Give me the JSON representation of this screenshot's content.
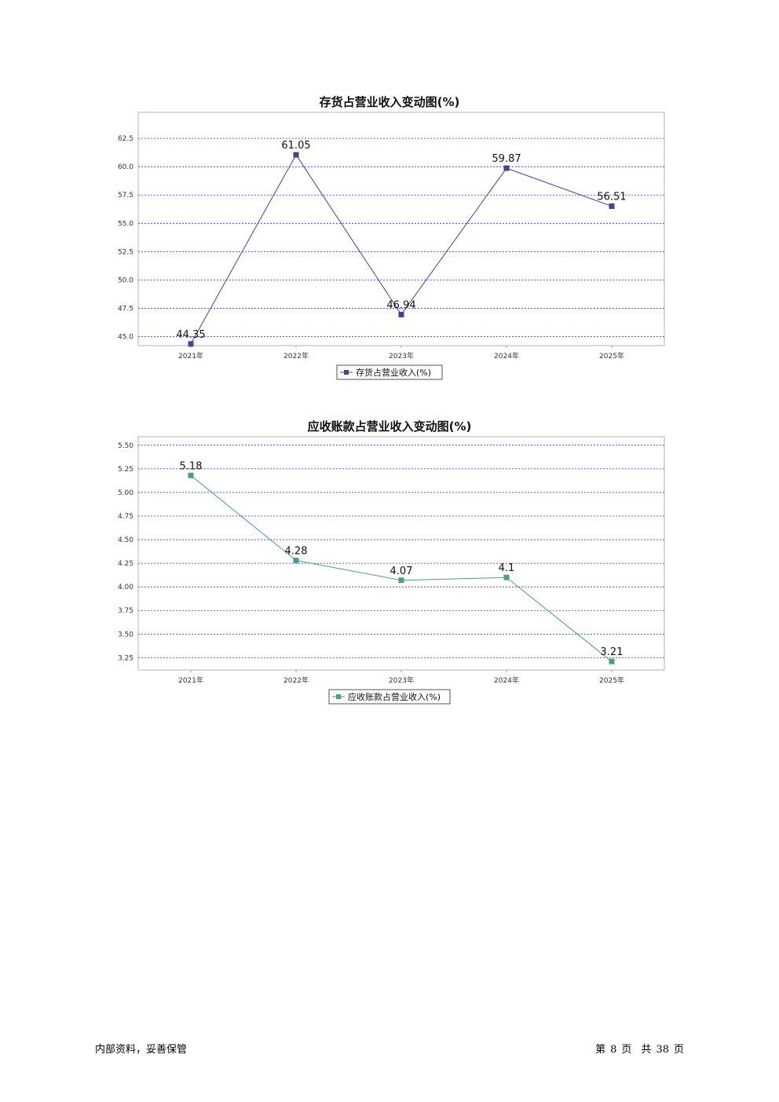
{
  "chart_data": [
    {
      "type": "line",
      "title": "存货占营业收入变动图(%)",
      "categories": [
        "2021年",
        "2022年",
        "2023年",
        "2024年",
        "2025年"
      ],
      "series": [
        {
          "name": "存货占营业收入(%)",
          "values": [
            44.35,
            61.05,
            46.94,
            59.87,
            56.51
          ],
          "color": "#4b3f8f"
        }
      ],
      "yticks": [
        "45.0",
        "47.5",
        "50.0",
        "52.5",
        "55.0",
        "57.5",
        "60.0",
        "62.5"
      ],
      "ylim": [
        44.2,
        64.8
      ],
      "grid": true,
      "legend": "bottom"
    },
    {
      "type": "line",
      "title": "应收账款占营业收入变动图(%)",
      "categories": [
        "2021年",
        "2022年",
        "2023年",
        "2024年",
        "2025年"
      ],
      "series": [
        {
          "name": "应收账款占营业收入(%)",
          "values": [
            5.18,
            4.28,
            4.07,
            4.1,
            3.21
          ],
          "color": "#4e9a8c"
        }
      ],
      "yticks": [
        "3.25",
        "3.50",
        "3.75",
        "4.00",
        "4.25",
        "4.50",
        "4.75",
        "5.00",
        "5.25",
        "5.50"
      ],
      "ylim": [
        3.12,
        5.59
      ],
      "grid": true,
      "legend": "bottom"
    }
  ],
  "footer": {
    "left": "内部资料，妥善保管",
    "page_prefix": "第",
    "page_number": "8",
    "page_suffix": "页",
    "total_prefix": "共",
    "total_pages": "38",
    "total_suffix": "页"
  }
}
